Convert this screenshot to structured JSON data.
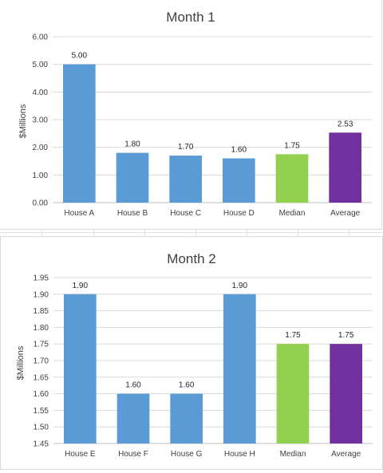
{
  "chart_data": [
    {
      "type": "bar",
      "title": "Month 1",
      "xlabel": "",
      "ylabel": "$Millions",
      "categories": [
        "House A",
        "House B",
        "House C",
        "House D",
        "Median",
        "Average"
      ],
      "values": [
        5.0,
        1.8,
        1.7,
        1.6,
        1.75,
        2.53
      ],
      "data_labels": [
        "5.00",
        "1.80",
        "1.70",
        "1.60",
        "1.75",
        "2.53"
      ],
      "ylim": [
        0,
        6
      ],
      "yticks": [
        0,
        1,
        2,
        3,
        4,
        5,
        6
      ],
      "ytick_labels": [
        "0.00",
        "1.00",
        "2.00",
        "3.00",
        "4.00",
        "5.00",
        "6.00"
      ],
      "grid": true,
      "legend": "none",
      "bar_colors": [
        "#5b9bd5",
        "#5b9bd5",
        "#5b9bd5",
        "#5b9bd5",
        "#92d050",
        "#7030a0"
      ]
    },
    {
      "type": "bar",
      "title": "Month 2",
      "xlabel": "",
      "ylabel": "$Millions",
      "categories": [
        "House E",
        "House F",
        "House G",
        "House H",
        "Median",
        "Average"
      ],
      "values": [
        1.9,
        1.6,
        1.6,
        1.9,
        1.75,
        1.75
      ],
      "data_labels": [
        "1.90",
        "1.60",
        "1.60",
        "1.90",
        "1.75",
        "1.75"
      ],
      "ylim": [
        1.45,
        1.95
      ],
      "yticks": [
        1.45,
        1.5,
        1.55,
        1.6,
        1.65,
        1.7,
        1.75,
        1.8,
        1.85,
        1.9,
        1.95
      ],
      "ytick_labels": [
        "1.45",
        "1.50",
        "1.55",
        "1.60",
        "1.65",
        "1.70",
        "1.75",
        "1.80",
        "1.85",
        "1.90",
        "1.95"
      ],
      "grid": true,
      "legend": "none",
      "bar_colors": [
        "#5b9bd5",
        "#5b9bd5",
        "#5b9bd5",
        "#5b9bd5",
        "#92d050",
        "#7030a0"
      ]
    }
  ]
}
